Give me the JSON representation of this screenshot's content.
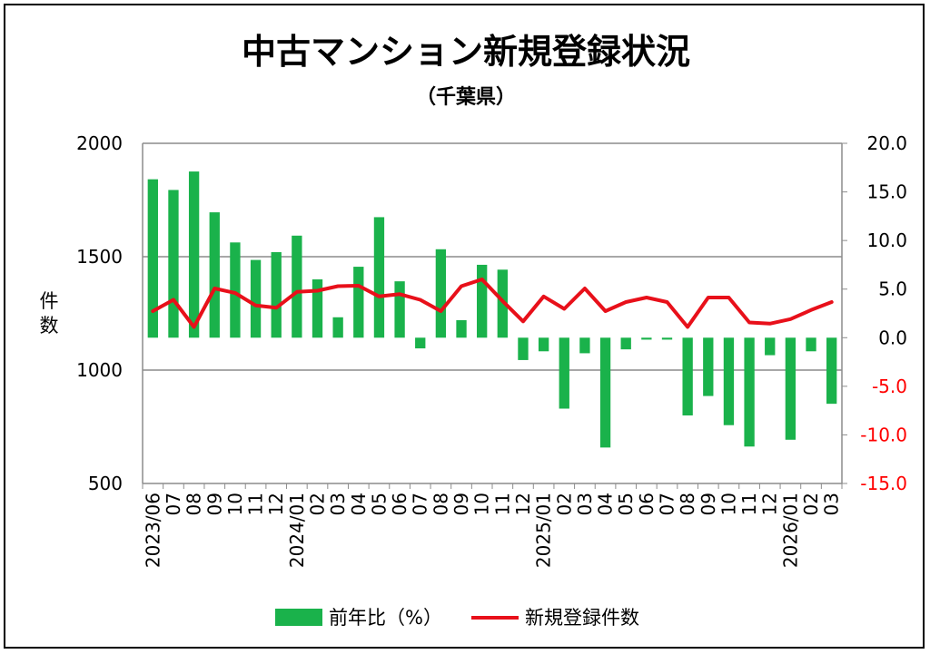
{
  "chart_data": {
    "type": "bar+line",
    "title": "中古マンション新規登録状況",
    "subtitle": "（千葉県）",
    "ylabel_left": "件数",
    "yleft": {
      "min": 500,
      "max": 2000,
      "ticks": [
        2000,
        1500,
        1000,
        500
      ]
    },
    "yright": {
      "min": -15,
      "max": 20,
      "ticks": [
        "20.0",
        "15.0",
        "10.0",
        "5.0",
        "0.0",
        "-5.0",
        "-10.0",
        "-15.0"
      ]
    },
    "categories": [
      "2023/06",
      "07",
      "08",
      "09",
      "10",
      "11",
      "12",
      "2024/01",
      "02",
      "03",
      "04",
      "05",
      "06",
      "07",
      "08",
      "09",
      "10",
      "11",
      "12",
      "2025/01",
      "02",
      "03",
      "04",
      "05",
      "06",
      "07",
      "08",
      "09",
      "10",
      "11",
      "12",
      "2026/01",
      "02",
      "03"
    ],
    "series": [
      {
        "name": "前年比（%）",
        "type": "bar",
        "axis": "right",
        "color": "#1ab24b",
        "values": [
          16.3,
          15.2,
          17.1,
          12.9,
          9.8,
          8.0,
          8.8,
          10.5,
          6.0,
          2.1,
          7.3,
          12.4,
          5.8,
          -1.1,
          9.1,
          1.8,
          7.5,
          7.0,
          -2.3,
          -1.4,
          -7.3,
          -1.6,
          -11.3,
          -1.2,
          -0.2,
          -0.2,
          -8.0,
          -6.0,
          -9.0,
          -11.2,
          -1.8,
          -10.5,
          -1.4,
          -6.8
        ]
      },
      {
        "name": "新規登録件数",
        "type": "line",
        "axis": "left",
        "color": "#e8101a",
        "values": [
          1260,
          1310,
          1190,
          1360,
          1340,
          1285,
          1275,
          1345,
          1350,
          1370,
          1372,
          1325,
          1335,
          1310,
          1260,
          1370,
          1400,
          1305,
          1215,
          1325,
          1270,
          1360,
          1260,
          1300,
          1320,
          1300,
          1190,
          1320,
          1320,
          1210,
          1205,
          1225,
          1265,
          1300
        ]
      }
    ],
    "grid": true,
    "legend_position": "bottom"
  }
}
